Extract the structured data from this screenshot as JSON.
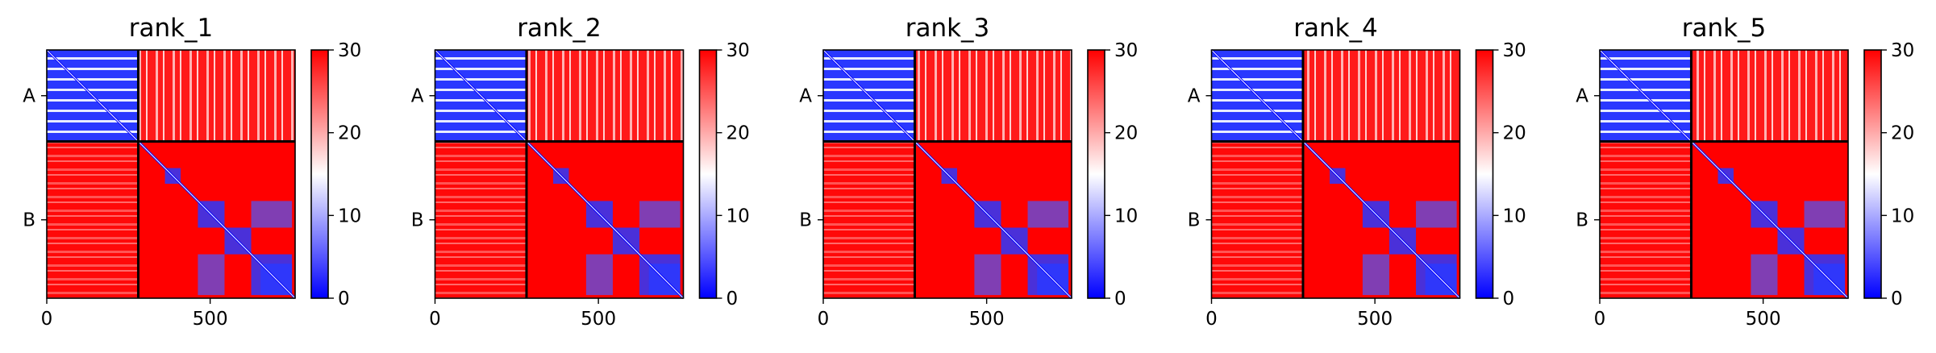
{
  "chart_data": [
    {
      "type": "heatmap",
      "title": "rank_1",
      "x_ticks": [
        0,
        500
      ],
      "y_tick_labels": [
        "A",
        "B"
      ],
      "colorbar": {
        "ticks": [
          0,
          10,
          20,
          30
        ],
        "range": [
          0,
          30
        ],
        "colors": {
          "low": "#0000ff",
          "mid": "#ffffff",
          "high": "#ff0000"
        }
      },
      "chains": [
        {
          "name": "A",
          "length": 280
        },
        {
          "name": "B",
          "length": 480
        }
      ],
      "xlim": [
        0,
        760
      ]
    },
    {
      "type": "heatmap",
      "title": "rank_2",
      "x_ticks": [
        0,
        500
      ],
      "y_tick_labels": [
        "A",
        "B"
      ],
      "colorbar": {
        "ticks": [
          0,
          10,
          20,
          30
        ],
        "range": [
          0,
          30
        ],
        "colors": {
          "low": "#0000ff",
          "mid": "#ffffff",
          "high": "#ff0000"
        }
      },
      "chains": [
        {
          "name": "A",
          "length": 280
        },
        {
          "name": "B",
          "length": 480
        }
      ],
      "xlim": [
        0,
        760
      ]
    },
    {
      "type": "heatmap",
      "title": "rank_3",
      "x_ticks": [
        0,
        500
      ],
      "y_tick_labels": [
        "A",
        "B"
      ],
      "colorbar": {
        "ticks": [
          0,
          10,
          20,
          30
        ],
        "range": [
          0,
          30
        ],
        "colors": {
          "low": "#0000ff",
          "mid": "#ffffff",
          "high": "#ff0000"
        }
      },
      "chains": [
        {
          "name": "A",
          "length": 280
        },
        {
          "name": "B",
          "length": 480
        }
      ],
      "xlim": [
        0,
        760
      ]
    },
    {
      "type": "heatmap",
      "title": "rank_4",
      "x_ticks": [
        0,
        500
      ],
      "y_tick_labels": [
        "A",
        "B"
      ],
      "colorbar": {
        "ticks": [
          0,
          10,
          20,
          30
        ],
        "range": [
          0,
          30
        ],
        "colors": {
          "low": "#0000ff",
          "mid": "#ffffff",
          "high": "#ff0000"
        }
      },
      "chains": [
        {
          "name": "A",
          "length": 280
        },
        {
          "name": "B",
          "length": 480
        }
      ],
      "xlim": [
        0,
        760
      ]
    },
    {
      "type": "heatmap",
      "title": "rank_5",
      "x_ticks": [
        0,
        500
      ],
      "y_tick_labels": [
        "A",
        "B"
      ],
      "colorbar": {
        "ticks": [
          0,
          10,
          20,
          30
        ],
        "range": [
          0,
          30
        ],
        "colors": {
          "low": "#0000ff",
          "mid": "#ffffff",
          "high": "#ff0000"
        }
      },
      "chains": [
        {
          "name": "A",
          "length": 280
        },
        {
          "name": "B",
          "length": 480
        }
      ],
      "xlim": [
        0,
        760
      ]
    }
  ]
}
